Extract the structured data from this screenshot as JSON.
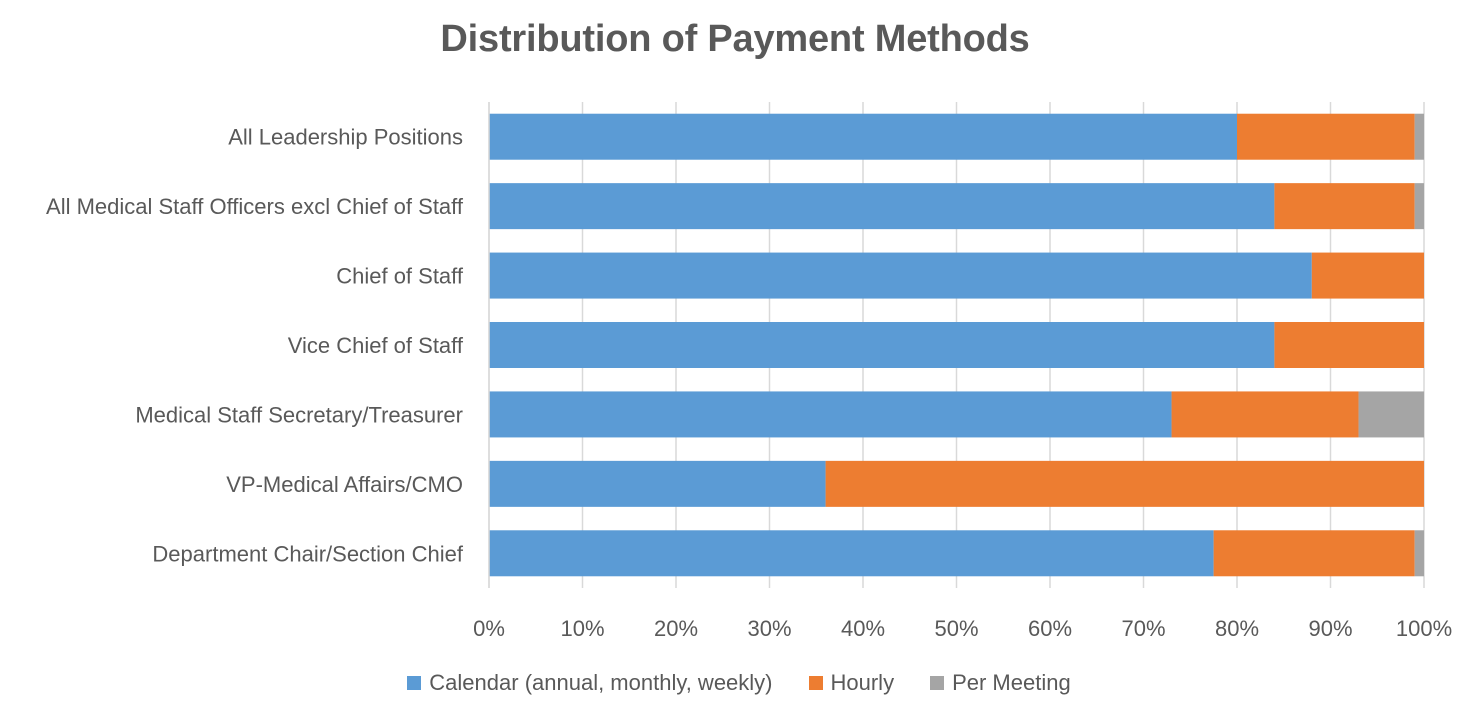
{
  "chart_data": {
    "type": "bar",
    "orientation": "horizontal",
    "stacked": "percent",
    "title": "Distribution of Payment Methods",
    "categories": [
      "All Leadership Positions",
      "All Medical Staff Officers excl Chief of Staff",
      "Chief of Staff",
      "Vice Chief of Staff",
      "Medical Staff Secretary/Treasurer",
      "VP-Medical Affairs/CMO",
      "Department Chair/Section Chief"
    ],
    "series": [
      {
        "name": "Calendar (annual, monthly, weekly)",
        "color": "#5B9BD5",
        "values": [
          80,
          84,
          88,
          84,
          73,
          36,
          77.5
        ]
      },
      {
        "name": "Hourly",
        "color": "#ED7D31",
        "values": [
          19,
          15,
          12,
          16,
          20,
          64,
          21.5
        ]
      },
      {
        "name": "Per Meeting",
        "color": "#A5A5A5",
        "values": [
          1,
          1,
          0,
          0,
          7,
          0,
          1
        ]
      }
    ],
    "x_ticks": [
      "0%",
      "10%",
      "20%",
      "30%",
      "40%",
      "50%",
      "60%",
      "70%",
      "80%",
      "90%",
      "100%"
    ],
    "xlim": [
      0,
      100
    ],
    "grid": "vertical",
    "legend_position": "bottom"
  }
}
